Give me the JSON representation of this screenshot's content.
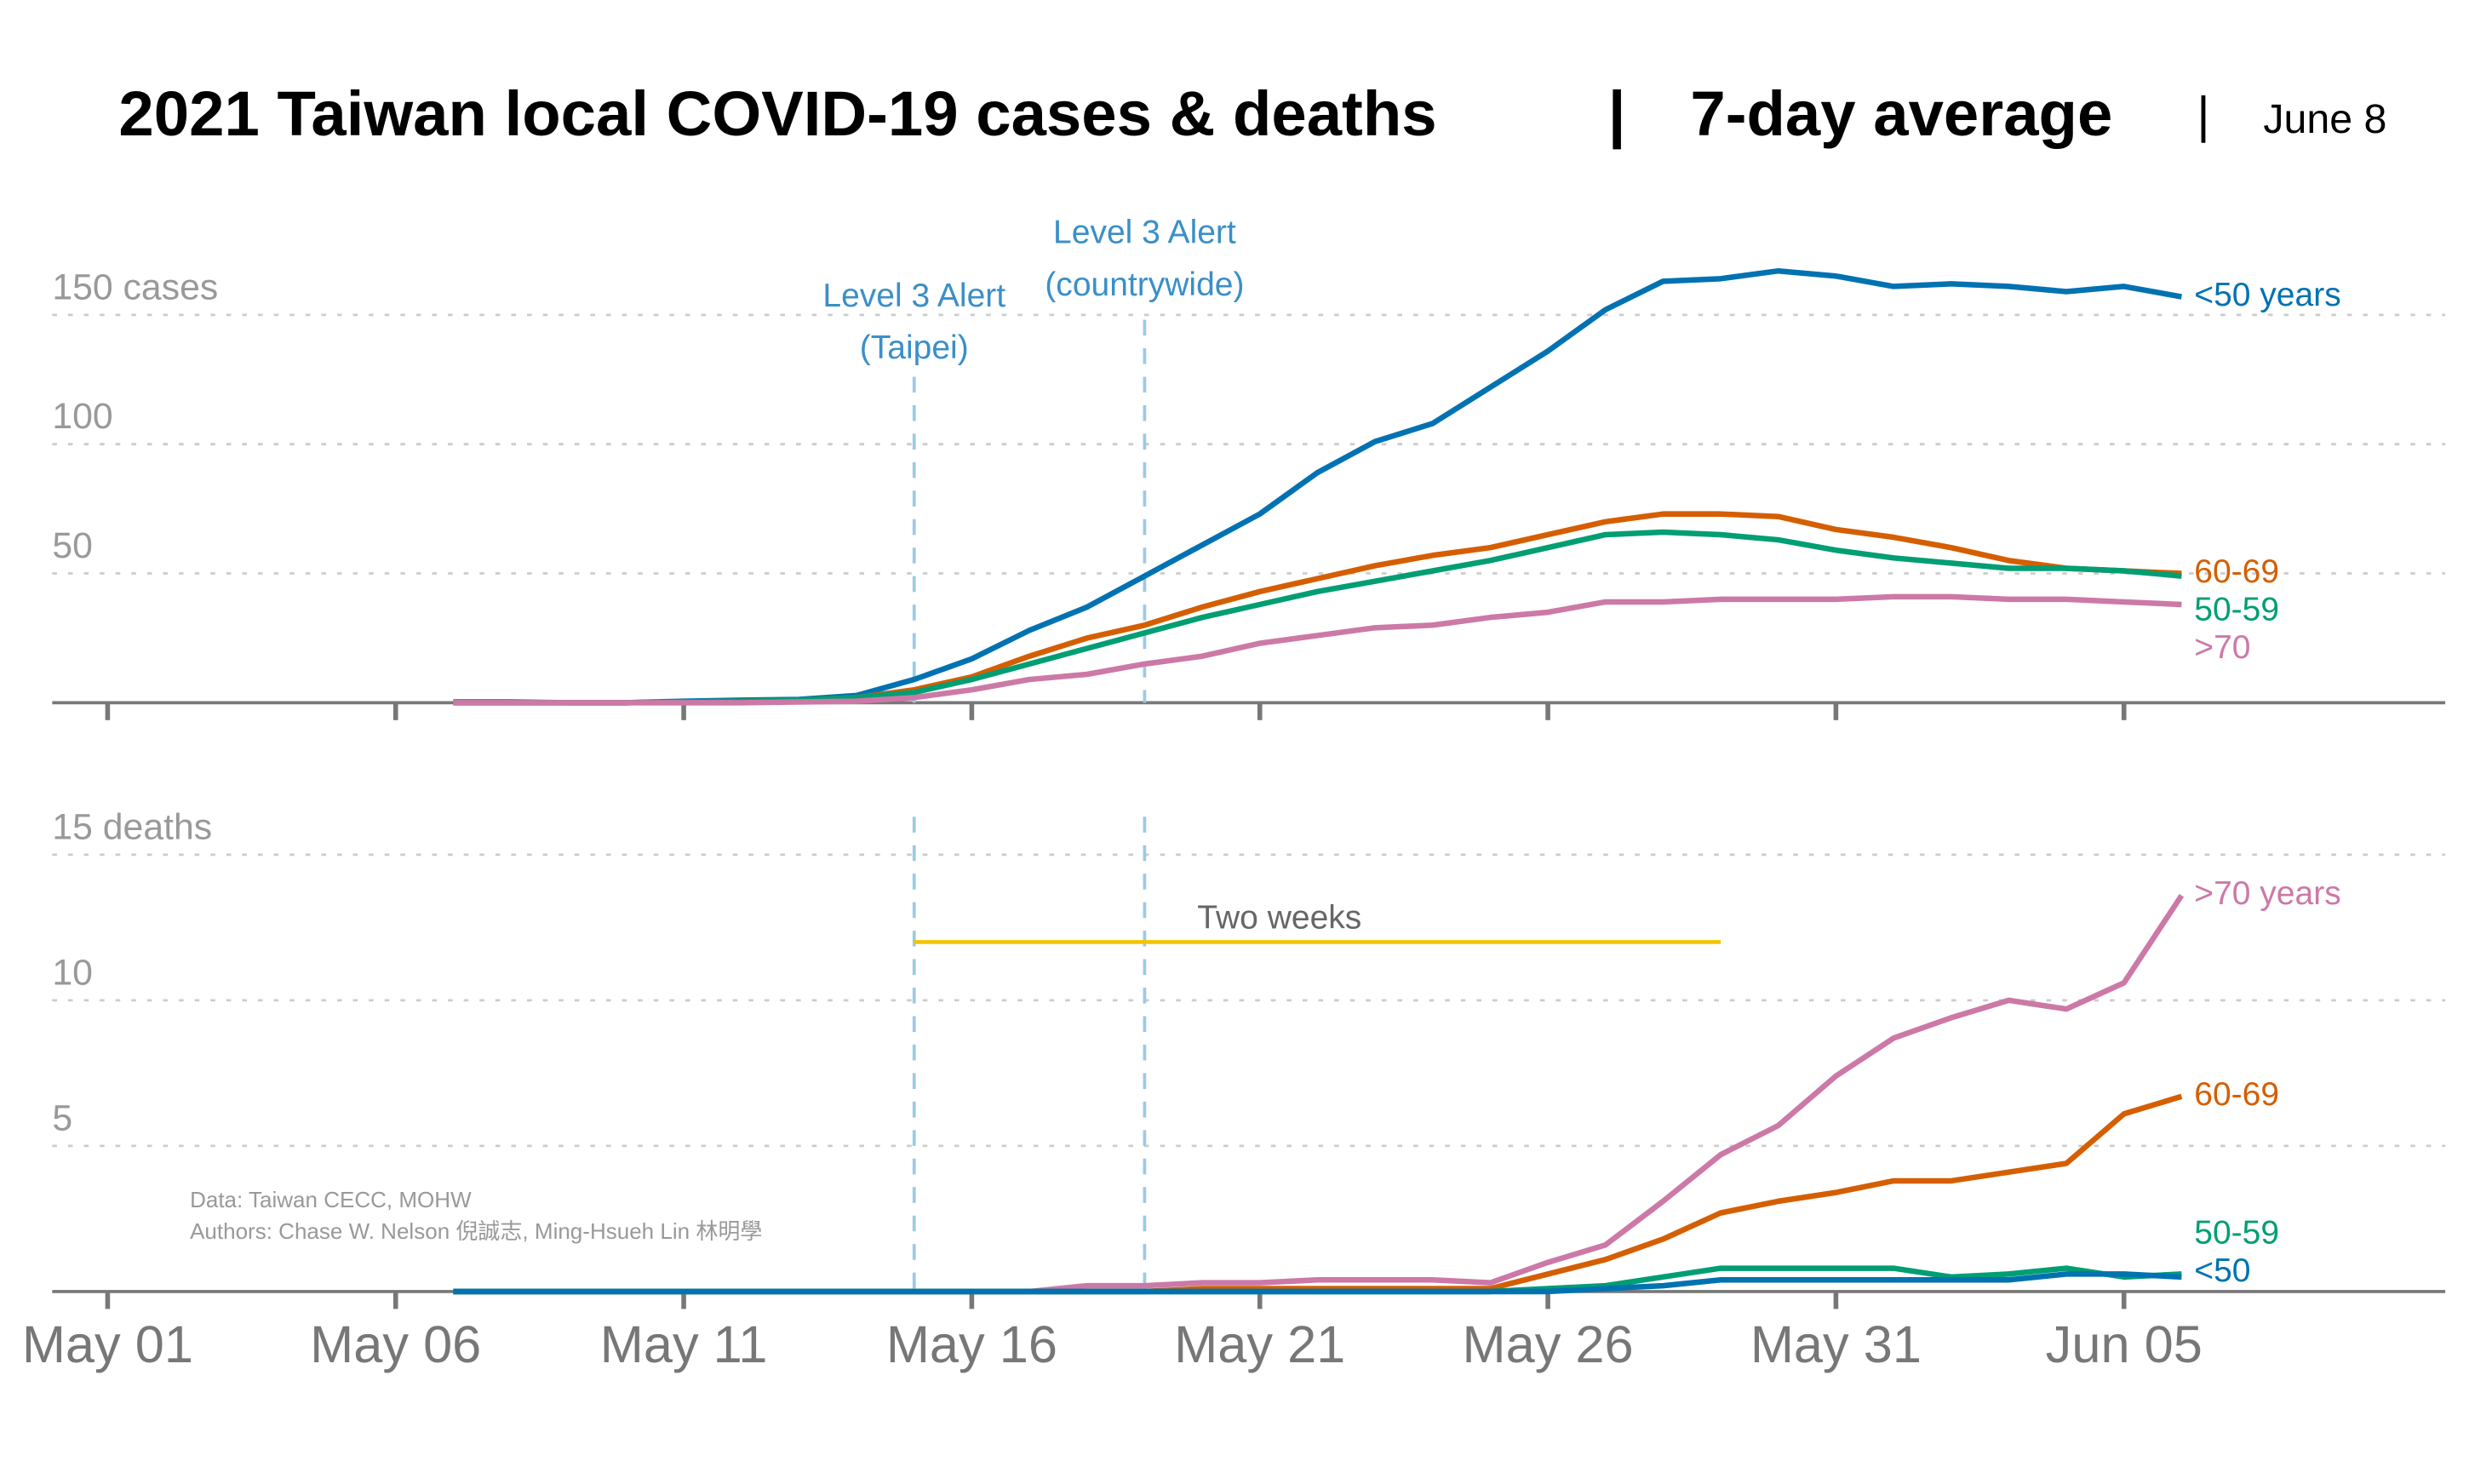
{
  "title": "2021 Taiwan local COVID-19 cases & deaths",
  "separator": "|",
  "subtitle": "7-day average",
  "date": "June 8",
  "source": [
    "Data: Taiwan CECC, MOHW",
    "Authors: Chase W. Nelson 倪誠志, Ming-Hsueh Lin 林明學"
  ],
  "alerts": [
    {
      "date": "May 15",
      "lines": [
        "Level 3 Alert",
        "(Taipei)"
      ]
    },
    {
      "date": "May 19",
      "lines": [
        "Level 3 Alert",
        "(countrywide)"
      ]
    }
  ],
  "span": {
    "label": "Two weeks",
    "start": "May 15",
    "end": "May 29",
    "value": 12,
    "color": "#f2c500"
  },
  "chart_data": [
    {
      "type": "line",
      "x": [
        "May 07",
        "May 08",
        "May 09",
        "May 10",
        "May 11",
        "May 12",
        "May 13",
        "May 14",
        "May 15",
        "May 16",
        "May 17",
        "May 18",
        "May 19",
        "May 20",
        "May 21",
        "May 22",
        "May 23",
        "May 24",
        "May 25",
        "May 26",
        "May 27",
        "May 28",
        "May 29",
        "May 30",
        "May 31",
        "Jun 01",
        "Jun 02",
        "Jun 03",
        "Jun 04",
        "Jun 05",
        "Jun 06"
      ],
      "xticks": [
        "May 01",
        "May 06",
        "May 11",
        "May 16",
        "May 21",
        "May 26",
        "May 31",
        "Jun 05"
      ],
      "ylim": [
        0,
        160
      ],
      "yticks": [
        {
          "value": 150,
          "label": "150 cases"
        },
        100,
        50
      ],
      "grid": true,
      "series": [
        {
          "name": "<50 years",
          "color": "#0072b2",
          "values": [
            0.3,
            0.3,
            0,
            0,
            0.6,
            1,
            1.3,
            2.8,
            9,
            17,
            28,
            37,
            49,
            61,
            73,
            89,
            101,
            108,
            122,
            136,
            152,
            163,
            164,
            167,
            165,
            161,
            162,
            161,
            159,
            161,
            157
          ]
        },
        {
          "name": "60-69",
          "color": "#d55e00",
          "values": [
            0,
            0,
            0,
            0,
            0.3,
            0.6,
            1,
            2,
            5,
            10,
            18,
            25,
            30,
            37,
            43,
            48,
            53,
            57,
            60,
            65,
            70,
            73,
            73,
            72,
            67,
            64,
            60,
            55,
            52,
            51,
            50
          ]
        },
        {
          "name": "50-59",
          "color": "#009e73",
          "values": [
            0,
            0,
            0,
            0,
            0.3,
            0.6,
            1,
            2,
            4,
            9,
            15,
            21,
            27,
            33,
            38,
            43,
            47,
            51,
            55,
            60,
            65,
            66,
            65,
            63,
            59,
            56,
            54,
            52,
            52,
            51,
            49
          ]
        },
        {
          "name": ">70",
          "color": "#cc79a7",
          "values": [
            0,
            0,
            0,
            0,
            0,
            0,
            0.3,
            0.6,
            2,
            5,
            9,
            11,
            15,
            18,
            23,
            26,
            29,
            30,
            33,
            35,
            39,
            39,
            40,
            40,
            40,
            41,
            41,
            40,
            40,
            39,
            38
          ]
        }
      ]
    },
    {
      "type": "line",
      "x": [
        "May 07",
        "May 08",
        "May 09",
        "May 10",
        "May 11",
        "May 12",
        "May 13",
        "May 14",
        "May 15",
        "May 16",
        "May 17",
        "May 18",
        "May 19",
        "May 20",
        "May 21",
        "May 22",
        "May 23",
        "May 24",
        "May 25",
        "May 26",
        "May 27",
        "May 28",
        "May 29",
        "May 30",
        "May 31",
        "Jun 01",
        "Jun 02",
        "Jun 03",
        "Jun 04",
        "Jun 05",
        "Jun 06"
      ],
      "xticks": [
        "May 01",
        "May 06",
        "May 11",
        "May 16",
        "May 21",
        "May 26",
        "May 31",
        "Jun 05"
      ],
      "ylim": [
        0,
        16
      ],
      "yticks": [
        {
          "value": 15,
          "label": "15 deaths"
        },
        10,
        5
      ],
      "grid": true,
      "series": [
        {
          "name": ">70 years",
          "color": "#cc79a7",
          "values": [
            0,
            0,
            0,
            0,
            0,
            0,
            0,
            0,
            0,
            0,
            0,
            0.2,
            0.2,
            0.3,
            0.3,
            0.4,
            0.4,
            0.4,
            0.3,
            1,
            1.6,
            3.1,
            4.7,
            5.7,
            7.4,
            8.7,
            9.4,
            10,
            9.7,
            10.6,
            13.6
          ]
        },
        {
          "name": "60-69",
          "color": "#d55e00",
          "values": [
            0,
            0,
            0,
            0,
            0,
            0,
            0,
            0,
            0,
            0,
            0,
            0,
            0,
            0.1,
            0.1,
            0.1,
            0.1,
            0.1,
            0.1,
            0.6,
            1.1,
            1.8,
            2.7,
            3.1,
            3.4,
            3.8,
            3.8,
            4.1,
            4.4,
            6.1,
            6.7
          ]
        },
        {
          "name": "50-59",
          "color": "#009e73",
          "values": [
            0,
            0,
            0,
            0,
            0,
            0,
            0,
            0,
            0,
            0,
            0,
            0,
            0,
            0,
            0,
            0,
            0,
            0,
            0,
            0.1,
            0.2,
            0.5,
            0.8,
            0.8,
            0.8,
            0.8,
            0.5,
            0.6,
            0.8,
            0.5,
            0.6
          ]
        },
        {
          "name": "<50",
          "color": "#0072b2",
          "values": [
            0,
            0,
            0,
            0,
            0,
            0,
            0,
            0,
            0,
            0,
            0,
            0,
            0,
            0,
            0,
            0,
            0,
            0,
            0,
            0,
            0.1,
            0.2,
            0.4,
            0.4,
            0.4,
            0.4,
            0.4,
            0.4,
            0.6,
            0.6,
            0.5
          ]
        }
      ]
    }
  ]
}
